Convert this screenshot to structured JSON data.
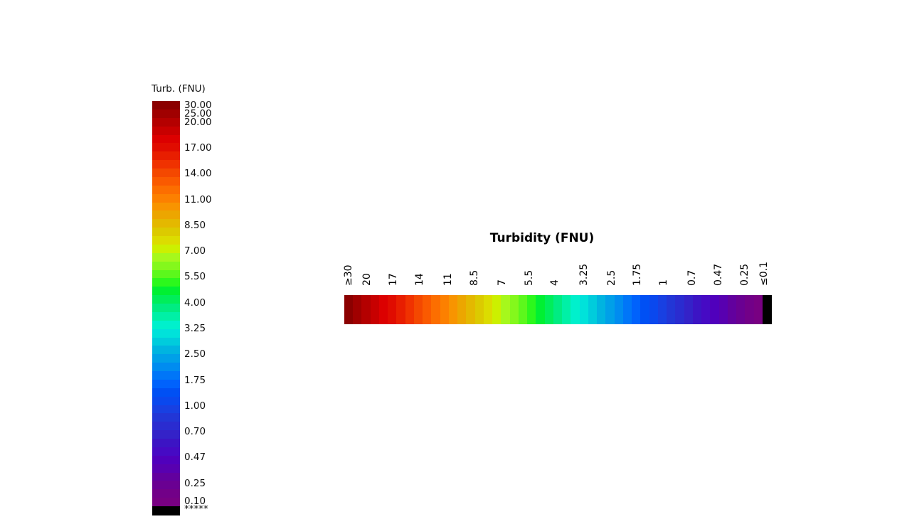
{
  "vertical_legend": {
    "title": "Turb. (FNU)",
    "labels": [
      "30.00",
      "25.00",
      "20.00",
      "17.00",
      "14.00",
      "11.00",
      "8.50",
      "7.00",
      "5.50",
      "4.00",
      "3.25",
      "2.50",
      "1.75",
      "1.00",
      "0.70",
      "0.47",
      "0.25",
      "0.10",
      "*****"
    ],
    "colors": [
      "#8b0000",
      "#a00000",
      "#b40000",
      "#c80000",
      "#dc0000",
      "#e00c00",
      "#e81e00",
      "#f03200",
      "#f44800",
      "#fa5a00",
      "#fc6e00",
      "#fc8000",
      "#f89400",
      "#eca600",
      "#e4b800",
      "#dcca00",
      "#dcdc00",
      "#ccf000",
      "#a6f81c",
      "#84f81c",
      "#5cf81c",
      "#2cf81c",
      "#00f032",
      "#00ee5a",
      "#00ec82",
      "#00f0a6",
      "#00f0cc",
      "#00e2da",
      "#00ccdc",
      "#00b4e0",
      "#00a0e8",
      "#008cf0",
      "#0076f8",
      "#0062fc",
      "#0050f4",
      "#0a48ee",
      "#1840e2",
      "#2236d6",
      "#2a2cd0",
      "#3422c8",
      "#3c14c4",
      "#460ac4",
      "#5000bc",
      "#5800b0",
      "#62009e",
      "#6a0092",
      "#720088",
      "#780082",
      "#000000"
    ]
  },
  "horizontal_legend": {
    "title": "Turbidity (FNU)",
    "labels": [
      "≥30",
      "20",
      "17",
      "14",
      "11",
      "8.5",
      "7",
      "5.5",
      "4",
      "3.25",
      "2.5",
      "1.75",
      "1",
      "0.7",
      "0.47",
      "0.25",
      "≤0.1"
    ],
    "colors": [
      "#8b0000",
      "#a00000",
      "#b40000",
      "#c80000",
      "#dc0000",
      "#e00c00",
      "#e81e00",
      "#f03200",
      "#f44800",
      "#fa5a00",
      "#fc6e00",
      "#fc8000",
      "#f89400",
      "#eca600",
      "#e4b800",
      "#dcca00",
      "#dcdc00",
      "#ccf000",
      "#a6f81c",
      "#84f81c",
      "#5cf81c",
      "#2cf81c",
      "#00f032",
      "#00ee5a",
      "#00ec82",
      "#00f0a6",
      "#00f0cc",
      "#00e2da",
      "#00ccdc",
      "#00b4e0",
      "#00a0e8",
      "#008cf0",
      "#0076f8",
      "#0062fc",
      "#0050f4",
      "#0a48ee",
      "#1840e2",
      "#2236d6",
      "#2a2cd0",
      "#3422c8",
      "#3c14c4",
      "#460ac4",
      "#5000bc",
      "#5800b0",
      "#62009e",
      "#6a0092",
      "#720088",
      "#780082",
      "#000000"
    ]
  }
}
